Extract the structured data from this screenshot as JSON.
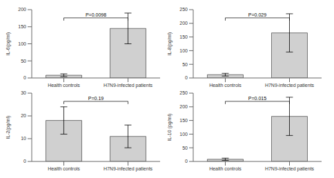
{
  "chart_data": [
    {
      "type": "bar",
      "ylabel": "IL-6(pg/ml)",
      "categories": [
        "Health controls",
        "H7N9-infected patients"
      ],
      "values": [
        8,
        145
      ],
      "error_low": [
        4,
        45
      ],
      "error_high": [
        4,
        45
      ],
      "annotation": "P=0.0098",
      "colors": [
        "#d0d0d0",
        "#d0d0d0"
      ],
      "ylim": [
        0,
        200
      ],
      "yticks": [
        0,
        50,
        100,
        150,
        200
      ],
      "grid": false
    },
    {
      "type": "bar",
      "ylabel": "IL-8(pg/ml)",
      "categories": [
        "Health controls",
        "H7N9-infected patients"
      ],
      "values": [
        12,
        165
      ],
      "error_low": [
        5,
        70
      ],
      "error_high": [
        5,
        70
      ],
      "annotation": "P=0.029",
      "colors": [
        "#d0d0d0",
        "#d0d0d0"
      ],
      "ylim": [
        0,
        250
      ],
      "yticks": [
        0,
        50,
        100,
        150,
        200,
        250
      ],
      "grid": false
    },
    {
      "type": "bar",
      "ylabel": "IL-2(pg/ml)",
      "categories": [
        "Health controls",
        "H7N9-infected patients"
      ],
      "values": [
        18,
        11
      ],
      "error_low": [
        6,
        5
      ],
      "error_high": [
        6,
        5
      ],
      "annotation": "P=0.19",
      "colors": [
        "#d0d0d0",
        "#d0d0d0"
      ],
      "ylim": [
        0,
        30
      ],
      "yticks": [
        0,
        10,
        20,
        30
      ],
      "grid": false
    },
    {
      "type": "bar",
      "ylabel": "IL-10 (pg/ml)",
      "categories": [
        "Health controls",
        "H7N9-infected patients"
      ],
      "values": [
        8,
        165
      ],
      "error_low": [
        4,
        70
      ],
      "error_high": [
        4,
        70
      ],
      "annotation": "P=0.015",
      "colors": [
        "#d0d0d0",
        "#d0d0d0"
      ],
      "ylim": [
        0,
        250
      ],
      "yticks": [
        0,
        50,
        100,
        150,
        200,
        250
      ],
      "grid": false
    }
  ]
}
